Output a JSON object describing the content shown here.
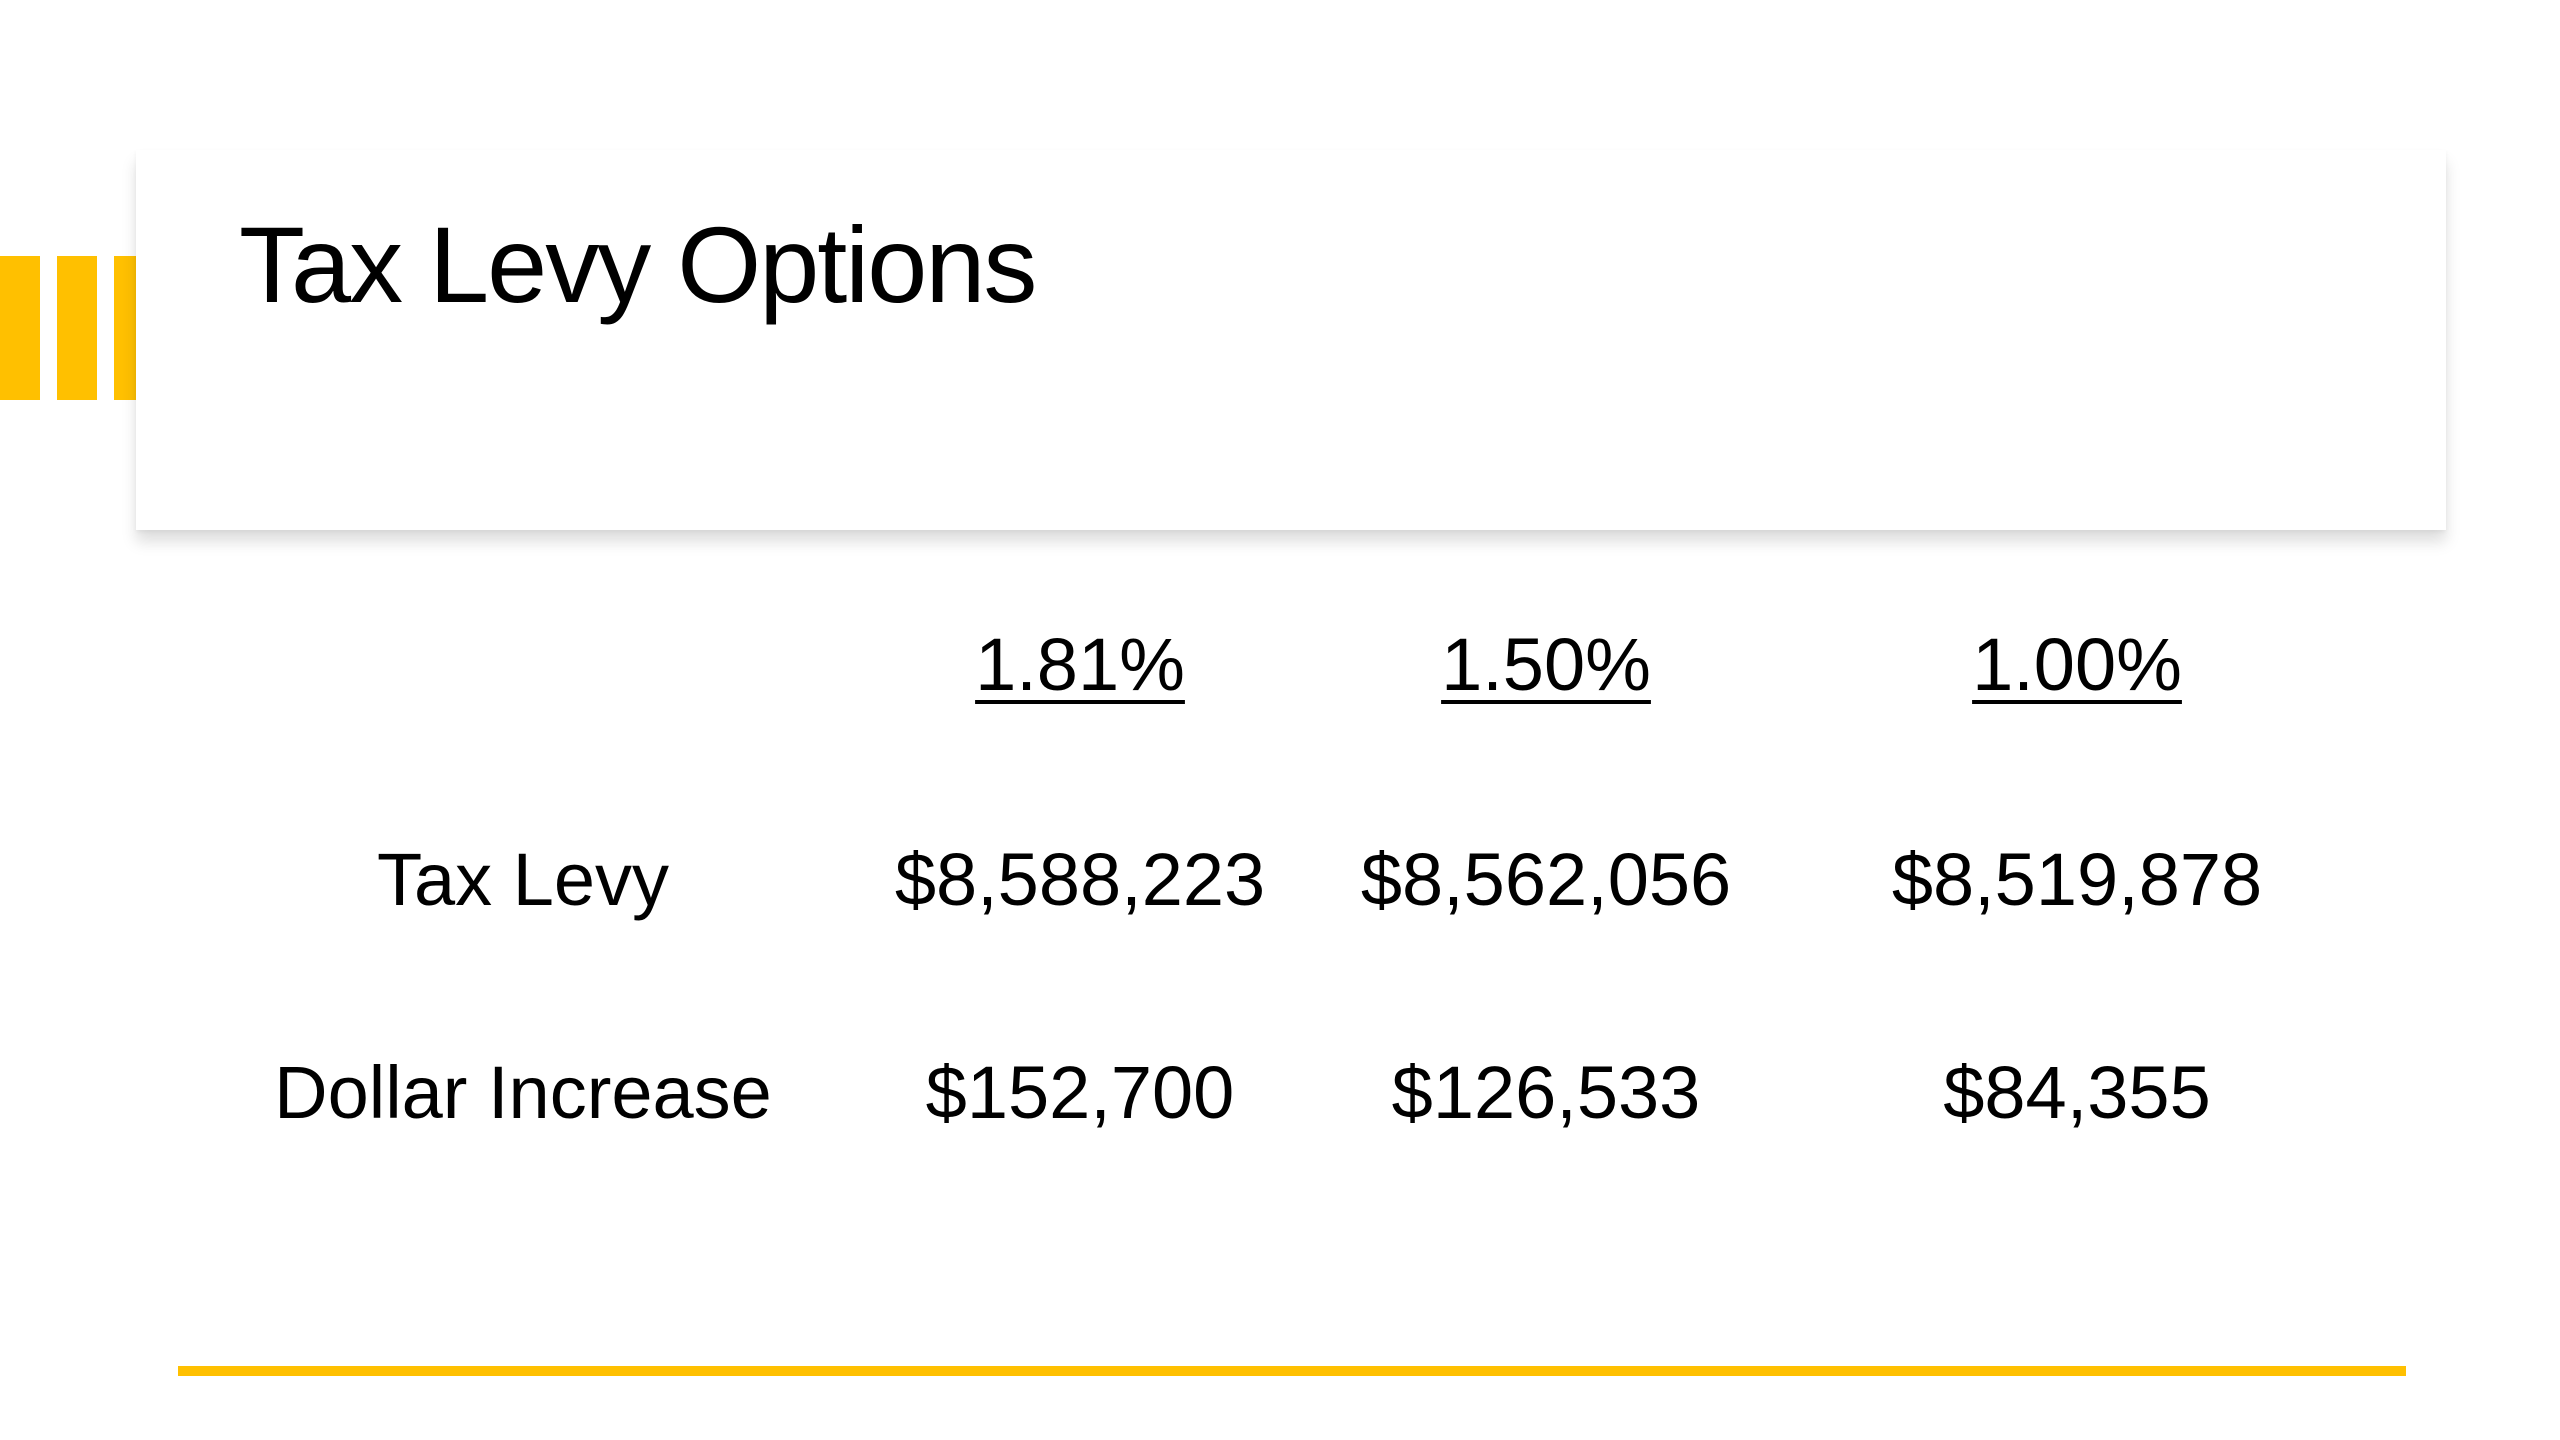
{
  "slide": {
    "title": "Tax Levy Options",
    "accent_color": "#FFC000"
  },
  "table": {
    "headers": [
      "1.81%",
      "1.50%",
      "1.00%"
    ],
    "rows": [
      {
        "label": "Tax Levy",
        "values": [
          "$8,588,223",
          "$8,562,056",
          "$8,519,878"
        ]
      },
      {
        "label": "Dollar Increase",
        "values": [
          "$152,700",
          "$126,533",
          "$84,355"
        ]
      }
    ]
  }
}
